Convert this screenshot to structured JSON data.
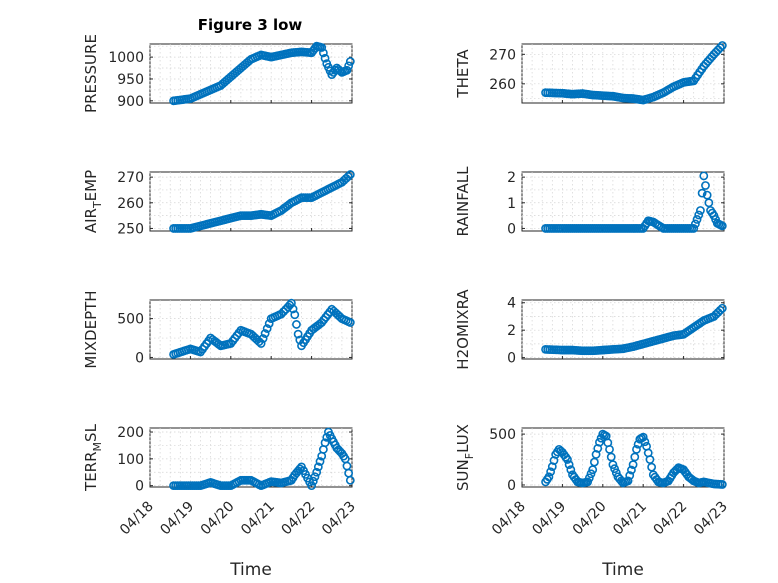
{
  "title": "Figure 3 low",
  "colors": {
    "marker": "#0072bd",
    "axis": "#262626",
    "grid": "#d3d3d3"
  },
  "chart_data": [
    {
      "type": "scatter",
      "id": "pressure",
      "ylabel": {
        "base": "PRESSURE",
        "sub": "",
        "tail": ""
      },
      "ylim": [
        895,
        1030
      ],
      "yticks": [
        900,
        950,
        1000
      ],
      "xlim": [
        "04/18",
        "04/23"
      ],
      "xticks": [],
      "xlabel": "",
      "grid": true,
      "x": [
        "04/18 14:00",
        "04/19 00:00",
        "04/19 06:00",
        "04/19 12:00",
        "04/19 18:00",
        "04/20 00:00",
        "04/20 06:00",
        "04/20 12:00",
        "04/20 18:00",
        "04/21 00:00",
        "04/21 06:00",
        "04/21 12:00",
        "04/21 18:00",
        "04/22 00:00",
        "04/22 03:00",
        "04/22 06:00",
        "04/22 09:00",
        "04/22 12:00",
        "04/22 15:00",
        "04/22 18:00",
        "04/22 21:00",
        "04/22 23:00"
      ],
      "y": [
        900,
        905,
        915,
        925,
        935,
        955,
        975,
        995,
        1005,
        1000,
        1005,
        1010,
        1012,
        1010,
        1025,
        1022,
        985,
        960,
        975,
        965,
        970,
        990
      ]
    },
    {
      "type": "scatter",
      "id": "theta",
      "ylabel": {
        "base": "THETA",
        "sub": "",
        "tail": ""
      },
      "ylim": [
        253.5,
        273.5
      ],
      "yticks": [
        260,
        270
      ],
      "xlim": [
        "04/18",
        "04/23"
      ],
      "xticks": [],
      "xlabel": "",
      "grid": true,
      "x": [
        "04/18 14:00",
        "04/19 00:00",
        "04/19 06:00",
        "04/19 12:00",
        "04/19 18:00",
        "04/20 00:00",
        "04/20 06:00",
        "04/20 12:00",
        "04/20 18:00",
        "04/21 00:00",
        "04/21 06:00",
        "04/21 12:00",
        "04/21 18:00",
        "04/22 00:00",
        "04/22 06:00",
        "04/22 12:00",
        "04/22 18:00",
        "04/22 23:00"
      ],
      "y": [
        257,
        256.8,
        256.5,
        256.7,
        256.2,
        256,
        255.8,
        255.2,
        255,
        254.5,
        255.5,
        257,
        259,
        260.5,
        261,
        266,
        270,
        273
      ]
    },
    {
      "type": "scatter",
      "id": "air_temp",
      "ylabel": {
        "base": "AIR",
        "sub": "T",
        "tail": "EMP"
      },
      "ylim": [
        249,
        272
      ],
      "yticks": [
        250,
        260,
        270
      ],
      "xlim": [
        "04/18",
        "04/23"
      ],
      "xticks": [],
      "xlabel": "",
      "grid": true,
      "x": [
        "04/18 14:00",
        "04/19 00:00",
        "04/19 06:00",
        "04/19 12:00",
        "04/19 18:00",
        "04/20 00:00",
        "04/20 06:00",
        "04/20 12:00",
        "04/20 18:00",
        "04/21 00:00",
        "04/21 06:00",
        "04/21 12:00",
        "04/21 18:00",
        "04/22 00:00",
        "04/22 06:00",
        "04/22 12:00",
        "04/22 18:00",
        "04/22 23:00"
      ],
      "y": [
        250,
        250,
        251,
        252,
        253,
        254,
        255,
        255,
        255.5,
        255,
        257,
        260,
        262,
        262,
        264,
        266,
        268,
        271
      ]
    },
    {
      "type": "scatter",
      "id": "rainfall",
      "ylabel": {
        "base": "RAINFALL",
        "sub": "",
        "tail": ""
      },
      "ylim": [
        -0.1,
        2.2
      ],
      "yticks": [
        0,
        1,
        2
      ],
      "xlim": [
        "04/18",
        "04/23"
      ],
      "xticks": [],
      "xlabel": "",
      "grid": true,
      "x": [
        "04/18 14:00",
        "04/19 00:00",
        "04/19 06:00",
        "04/19 12:00",
        "04/19 18:00",
        "04/20 00:00",
        "04/20 06:00",
        "04/20 12:00",
        "04/20 18:00",
        "04/21 00:00",
        "04/21 03:00",
        "04/21 06:00",
        "04/21 12:00",
        "04/21 18:00",
        "04/22 00:00",
        "04/22 06:00",
        "04/22 08:00",
        "04/22 10:00",
        "04/22 12:00",
        "04/22 14:00",
        "04/22 16:00",
        "04/22 18:00",
        "04/22 20:00",
        "04/22 23:00"
      ],
      "y": [
        0,
        0,
        0,
        0,
        0,
        0,
        0,
        0,
        0,
        0,
        0.3,
        0.25,
        0,
        0,
        0,
        0,
        0.35,
        0.7,
        2.05,
        1.3,
        0.7,
        0.5,
        0.2,
        0.1
      ]
    },
    {
      "type": "scatter",
      "id": "mixdepth",
      "ylabel": {
        "base": "MIXDEPTH",
        "sub": "",
        "tail": ""
      },
      "ylim": [
        -20,
        740
      ],
      "yticks": [
        0,
        500
      ],
      "xlim": [
        "04/18",
        "04/23"
      ],
      "xticks": [],
      "xlabel": "",
      "grid": true,
      "x": [
        "04/18 14:00",
        "04/19 00:00",
        "04/19 06:00",
        "04/19 12:00",
        "04/19 18:00",
        "04/20 00:00",
        "04/20 06:00",
        "04/20 12:00",
        "04/20 18:00",
        "04/21 00:00",
        "04/21 06:00",
        "04/21 10:00",
        "04/21 12:00",
        "04/21 14:00",
        "04/21 16:00",
        "04/21 18:00",
        "04/22 00:00",
        "04/22 06:00",
        "04/22 12:00",
        "04/22 18:00",
        "04/22 23:00"
      ],
      "y": [
        40,
        110,
        70,
        250,
        150,
        180,
        350,
        300,
        180,
        500,
        560,
        650,
        700,
        550,
        300,
        150,
        350,
        450,
        620,
        500,
        450
      ]
    },
    {
      "type": "scatter",
      "id": "h2omixra",
      "ylabel": {
        "base": "H2OMIXRA",
        "sub": "",
        "tail": ""
      },
      "ylim": [
        -0.1,
        4.2
      ],
      "yticks": [
        0,
        2,
        4
      ],
      "xlim": [
        "04/18",
        "04/23"
      ],
      "xticks": [],
      "xlabel": "",
      "grid": true,
      "x": [
        "04/18 14:00",
        "04/19 00:00",
        "04/19 06:00",
        "04/19 12:00",
        "04/19 18:00",
        "04/20 00:00",
        "04/20 06:00",
        "04/20 12:00",
        "04/20 18:00",
        "04/21 00:00",
        "04/21 06:00",
        "04/21 12:00",
        "04/21 18:00",
        "04/22 00:00",
        "04/22 06:00",
        "04/22 12:00",
        "04/22 18:00",
        "04/22 23:00"
      ],
      "y": [
        0.6,
        0.55,
        0.55,
        0.5,
        0.5,
        0.55,
        0.6,
        0.65,
        0.8,
        1.0,
        1.2,
        1.4,
        1.6,
        1.7,
        2.2,
        2.7,
        3.0,
        3.6
      ]
    },
    {
      "type": "scatter",
      "id": "terr_msl",
      "ylabel": {
        "base": "TERR",
        "sub": "M",
        "tail": "SL"
      },
      "ylim": [
        -5,
        215
      ],
      "yticks": [
        0,
        100,
        200
      ],
      "xlim": [
        "04/18",
        "04/23"
      ],
      "xticks": [
        "04/18",
        "04/19",
        "04/20",
        "04/21",
        "04/22",
        "04/23"
      ],
      "xlabel": "Time",
      "grid": true,
      "x": [
        "04/18 14:00",
        "04/19 00:00",
        "04/19 06:00",
        "04/19 12:00",
        "04/19 18:00",
        "04/20 00:00",
        "04/20 06:00",
        "04/20 12:00",
        "04/20 18:00",
        "04/21 00:00",
        "04/21 06:00",
        "04/21 12:00",
        "04/21 14:00",
        "04/21 16:00",
        "04/21 18:00",
        "04/22 00:00",
        "04/22 03:00",
        "04/22 06:00",
        "04/22 08:00",
        "04/22 10:00",
        "04/22 12:00",
        "04/22 15:00",
        "04/22 18:00",
        "04/22 20:00",
        "04/22 23:00"
      ],
      "y": [
        0,
        0,
        0,
        12,
        0,
        0,
        20,
        20,
        0,
        15,
        10,
        20,
        40,
        55,
        70,
        0,
        50,
        110,
        160,
        200,
        175,
        140,
        120,
        100,
        20
      ]
    },
    {
      "type": "scatter",
      "id": "sun_flux",
      "ylabel": {
        "base": "SUN",
        "sub": "F",
        "tail": "LUX"
      },
      "ylim": [
        -20,
        560
      ],
      "yticks": [
        0,
        500
      ],
      "xlim": [
        "04/18",
        "04/23"
      ],
      "xticks": [
        "04/18",
        "04/19",
        "04/20",
        "04/21",
        "04/22",
        "04/23"
      ],
      "xlabel": "Time",
      "grid": true,
      "x": [
        "04/18 14:00",
        "04/18 16:00",
        "04/18 18:00",
        "04/18 20:00",
        "04/18 22:00",
        "04/19 00:00",
        "04/19 03:00",
        "04/19 06:00",
        "04/19 09:00",
        "04/19 12:00",
        "04/19 15:00",
        "04/19 18:00",
        "04/19 20:00",
        "04/19 22:00",
        "04/20 00:00",
        "04/20 02:00",
        "04/20 04:00",
        "04/20 06:00",
        "04/20 09:00",
        "04/20 12:00",
        "04/20 15:00",
        "04/20 18:00",
        "04/20 20:00",
        "04/20 22:00",
        "04/21 00:00",
        "04/21 02:00",
        "04/21 04:00",
        "04/21 06:00",
        "04/21 09:00",
        "04/21 12:00",
        "04/21 15:00",
        "04/21 18:00",
        "04/21 21:00",
        "04/22 00:00",
        "04/22 03:00",
        "04/22 06:00",
        "04/22 09:00",
        "04/22 12:00",
        "04/22 18:00",
        "04/22 23:00"
      ],
      "y": [
        30,
        80,
        180,
        300,
        350,
        320,
        250,
        100,
        30,
        20,
        30,
        150,
        300,
        420,
        500,
        480,
        350,
        200,
        80,
        20,
        40,
        200,
        350,
        450,
        470,
        380,
        250,
        100,
        30,
        20,
        40,
        120,
        170,
        150,
        80,
        40,
        20,
        30,
        10,
        5
      ]
    }
  ]
}
